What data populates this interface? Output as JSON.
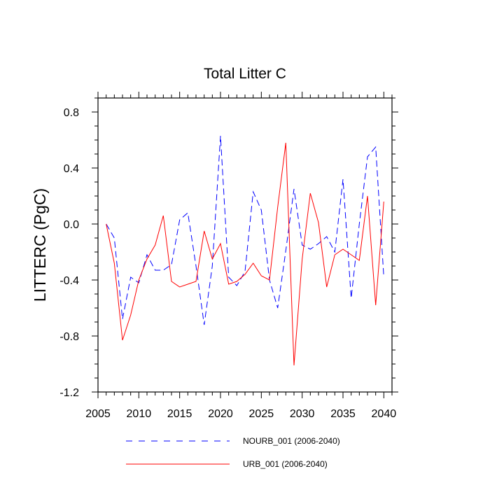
{
  "chart_data": {
    "type": "line",
    "title": "Total Litter C",
    "ylabel": "LITTERC  (PgC)",
    "xlabel": "",
    "xlim": [
      2005,
      2041
    ],
    "ylim": [
      -1.2,
      0.9
    ],
    "x_ticks": [
      2005,
      2010,
      2015,
      2020,
      2025,
      2030,
      2035,
      2040
    ],
    "x_tick_labels": [
      "2005",
      "2010",
      "2015",
      "2020",
      "2025",
      "2030",
      "2035",
      "2040"
    ],
    "y_ticks": [
      -1.2,
      -0.8,
      -0.4,
      0.0,
      0.4,
      0.8
    ],
    "y_tick_labels": [
      "-1.2",
      "-0.8",
      "-0.4",
      "0.0",
      "0.4",
      "0.8"
    ],
    "grid": false,
    "legend_position": "bottom",
    "x": [
      2006,
      2007,
      2008,
      2009,
      2010,
      2011,
      2012,
      2013,
      2014,
      2015,
      2016,
      2017,
      2018,
      2019,
      2020,
      2021,
      2022,
      2023,
      2024,
      2025,
      2026,
      2027,
      2028,
      2029,
      2030,
      2031,
      2032,
      2033,
      2034,
      2035,
      2036,
      2037,
      2038,
      2039,
      2040
    ],
    "series": [
      {
        "name": "NOURB_001 (2006-2040)",
        "color": "#0000ff",
        "style": "dashed",
        "values": [
          0.0,
          -0.1,
          -0.68,
          -0.38,
          -0.42,
          -0.22,
          -0.33,
          -0.33,
          -0.29,
          0.03,
          0.08,
          -0.3,
          -0.72,
          -0.3,
          0.63,
          -0.38,
          -0.44,
          -0.34,
          0.23,
          0.1,
          -0.4,
          -0.6,
          -0.19,
          0.25,
          -0.15,
          -0.18,
          -0.14,
          -0.09,
          -0.2,
          0.32,
          -0.53,
          0.0,
          0.48,
          0.55,
          -0.38
        ]
      },
      {
        "name": "URB_001 (2006-2040)",
        "color": "#ff0000",
        "style": "solid",
        "values": [
          0.0,
          -0.28,
          -0.83,
          -0.65,
          -0.4,
          -0.25,
          -0.15,
          0.06,
          -0.41,
          -0.45,
          -0.43,
          -0.41,
          -0.05,
          -0.25,
          -0.14,
          -0.43,
          -0.41,
          -0.36,
          -0.28,
          -0.37,
          -0.4,
          0.12,
          0.58,
          -1.01,
          -0.25,
          0.22,
          0.01,
          -0.45,
          -0.22,
          -0.18,
          -0.22,
          -0.26,
          0.2,
          -0.58,
          0.16
        ]
      }
    ]
  }
}
